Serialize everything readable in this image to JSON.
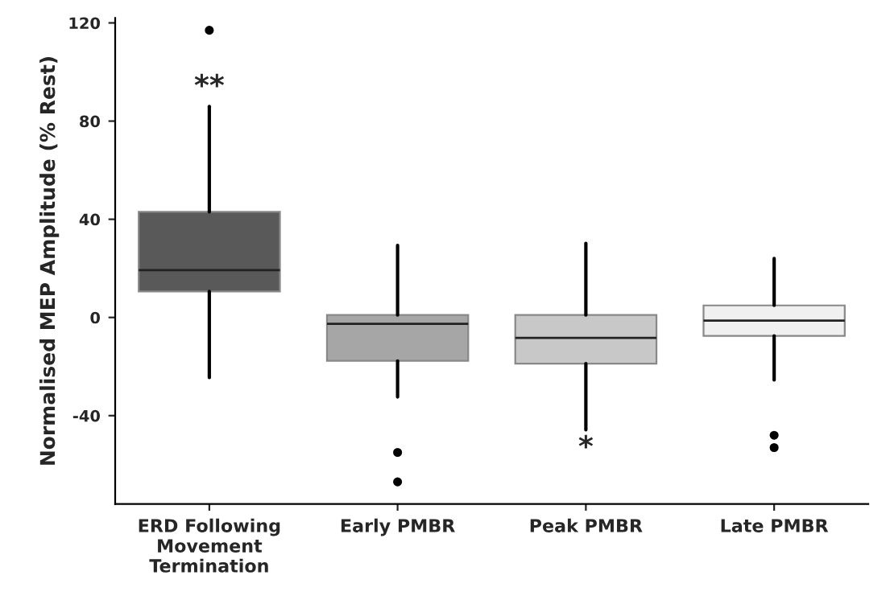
{
  "chart_data": {
    "type": "box",
    "ylabel": "Normalised MEP Amplitude (% Rest)",
    "categories": [
      "ERD Following\nMovement\nTermination",
      "Early PMBR",
      "Peak PMBR",
      "Late PMBR"
    ],
    "boxes": [
      {
        "low": -24.5,
        "q1": 10.6,
        "median": 19.3,
        "q3": 43,
        "high": 86,
        "outliers": [
          117
        ]
      },
      {
        "low": -32.4,
        "q1": -17.7,
        "median": -2.6,
        "q3": 1,
        "high": 29.4,
        "outliers": [
          -55,
          -67
        ]
      },
      {
        "low": -45.8,
        "q1": -18.8,
        "median": -8.3,
        "q3": 1,
        "high": 30.2
      },
      {
        "low": -25.5,
        "q1": -7.5,
        "median": -1.3,
        "q3": 4.9,
        "high": 24,
        "outliers": [
          -48,
          -53
        ]
      }
    ],
    "colors": [
      "#595959",
      "#a6a6a6",
      "#c8c8c8",
      "#f0f0f0"
    ],
    "ylim": [
      -76,
      122
    ],
    "yticks": [
      -40,
      0,
      40,
      80,
      120
    ],
    "grid": false,
    "annotations": [
      {
        "text": "**",
        "x": "ERD Following\nMovement\nTermination",
        "y": 88
      },
      {
        "text": "*",
        "x": "Peak PMBR",
        "y": -45.8
      }
    ]
  }
}
